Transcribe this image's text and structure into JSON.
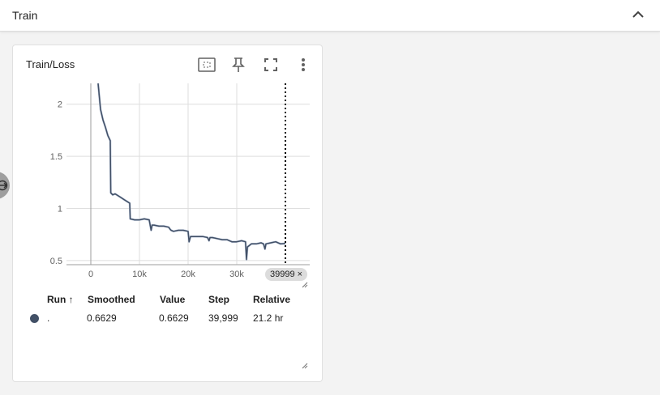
{
  "section": {
    "title": "Train"
  },
  "card": {
    "title": "Train/Loss"
  },
  "colors": {
    "line": "#425066",
    "raw_line": "#b8c4d8",
    "grid": "#dedede"
  },
  "icons": [
    "chevron-up-icon",
    "fit-domain-icon",
    "pin-icon",
    "fullscreen-icon",
    "more-vert-icon",
    "sidebar-toggle-icon"
  ],
  "chart_data": {
    "type": "line",
    "title": "Train/Loss",
    "xlabel": "",
    "ylabel": "",
    "x_ticks": [
      "0",
      "10k",
      "20k",
      "30k"
    ],
    "y_ticks": [
      "0.5",
      "1",
      "1.5",
      "2"
    ],
    "xlim": [
      -5000,
      45000
    ],
    "ylim": [
      0.46,
      2.2
    ],
    "grid": true,
    "hover_x": 39999,
    "series": [
      {
        "name": ".",
        "x": [
          1500,
          2000,
          2500,
          3000,
          3500,
          4000,
          4100,
          4500,
          5000,
          6000,
          7000,
          8000,
          8100,
          9000,
          10000,
          11000,
          12000,
          12400,
          12600,
          13000,
          14000,
          15000,
          16000,
          16300,
          16500,
          17000,
          18000,
          19000,
          20000,
          20200,
          20500,
          21000,
          22000,
          23000,
          24000,
          24300,
          24500,
          25000,
          26000,
          27000,
          28000,
          28500,
          29000,
          30000,
          31000,
          31800,
          32000,
          32200,
          33000,
          34000,
          35000,
          35500,
          35800,
          36000,
          37000,
          38000,
          39000,
          39999
        ],
        "values": [
          2.2,
          1.95,
          1.85,
          1.78,
          1.7,
          1.65,
          1.15,
          1.13,
          1.14,
          1.11,
          1.08,
          1.05,
          0.9,
          0.89,
          0.89,
          0.9,
          0.89,
          0.79,
          0.84,
          0.84,
          0.83,
          0.83,
          0.82,
          0.8,
          0.79,
          0.78,
          0.79,
          0.79,
          0.78,
          0.68,
          0.73,
          0.73,
          0.73,
          0.73,
          0.72,
          0.69,
          0.72,
          0.72,
          0.71,
          0.7,
          0.7,
          0.69,
          0.68,
          0.68,
          0.69,
          0.68,
          0.51,
          0.63,
          0.66,
          0.66,
          0.67,
          0.66,
          0.61,
          0.66,
          0.67,
          0.68,
          0.66,
          0.6629
        ]
      }
    ]
  },
  "hover_chip": {
    "text": "39999",
    "close": "×"
  },
  "table": {
    "headers": {
      "run": "Run",
      "sort_indicator": "↑",
      "smoothed": "Smoothed",
      "value": "Value",
      "step": "Step",
      "relative": "Relative"
    },
    "rows": [
      {
        "run": ".",
        "smoothed": "0.6629",
        "value": "0.6629",
        "step": "39,999",
        "relative": "21.2 hr",
        "color": "#425066"
      }
    ]
  }
}
